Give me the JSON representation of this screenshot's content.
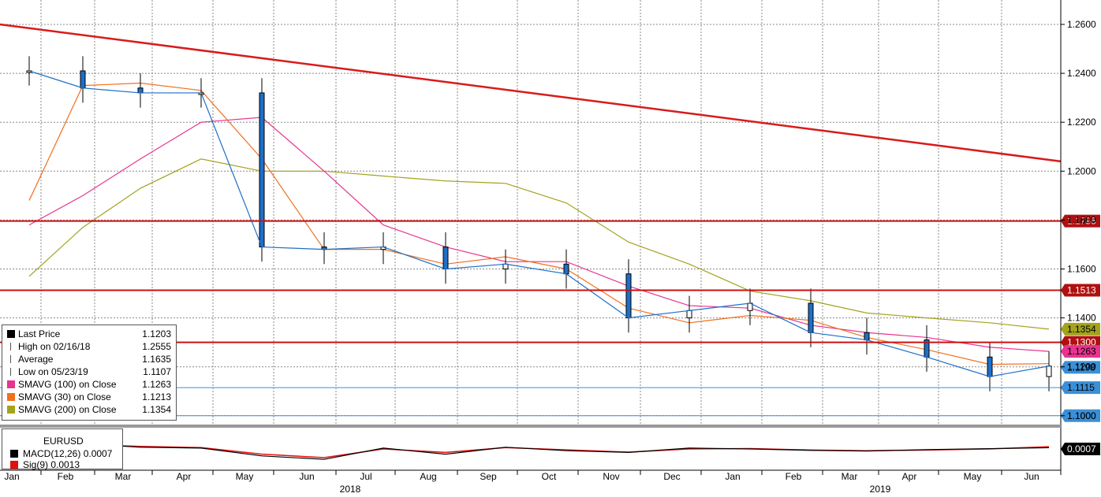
{
  "chart_data": {
    "type": "line",
    "ticker": "EURUSD",
    "y_ticks": [
      "1.2600",
      "1.2400",
      "1.2200",
      "1.2000",
      "1.1800",
      "1.1600",
      "1.1400",
      "1.1200",
      "1.1000"
    ],
    "ylim": [
      1.1,
      1.265
    ],
    "x_months": [
      "Jan",
      "Feb",
      "Mar",
      "Apr",
      "May",
      "Jun",
      "Jul",
      "Aug",
      "Sep",
      "Oct",
      "Nov",
      "Dec",
      "Jan",
      "Feb",
      "Mar",
      "Apr",
      "May",
      "Jun"
    ],
    "x_years": [
      "2018",
      "2019"
    ],
    "horizontal_levels": [
      {
        "value": 1.1796,
        "label": "1.1796",
        "color": "#cc1111"
      },
      {
        "value": 1.1513,
        "label": "1.1513",
        "color": "#cc1111"
      },
      {
        "value": 1.13,
        "label": "1.1300",
        "color": "#cc1111"
      },
      {
        "value": 1.1115,
        "label": "1.1115",
        "color": "#3a8fd6"
      },
      {
        "value": 1.1,
        "label": "1.1000",
        "color": "#3a8fd6"
      }
    ],
    "tags": [
      {
        "value": 1.1354,
        "label": "1.1354",
        "color": "#a3a31e"
      },
      {
        "value": 1.1263,
        "label": "1.1263",
        "color": "#e8338f"
      },
      {
        "value": 1.1198,
        "label": "1.1198",
        "color": "#3a8fd6"
      }
    ],
    "trendline": {
      "start": 1.2555,
      "end": 1.204
    },
    "price": {
      "x": [
        "Jan-18",
        "Feb-18",
        "Mar-18",
        "Apr-18",
        "May-18",
        "Jun-18",
        "Jul-18",
        "Aug-18",
        "Sep-18",
        "Oct-18",
        "Nov-18",
        "Dec-18",
        "Jan-19",
        "Feb-19",
        "Mar-19",
        "Apr-19",
        "May-19",
        "Jun-19"
      ],
      "close": [
        1.241,
        1.234,
        1.232,
        1.232,
        1.169,
        1.168,
        1.169,
        1.16,
        1.162,
        1.158,
        1.14,
        1.143,
        1.146,
        1.134,
        1.131,
        1.124,
        1.116,
        1.1203
      ]
    },
    "sma30": [
      1.188,
      1.235,
      1.236,
      1.233,
      1.205,
      1.168,
      1.168,
      1.162,
      1.165,
      1.16,
      1.144,
      1.138,
      1.141,
      1.139,
      1.132,
      1.127,
      1.121,
      1.1213
    ],
    "sma100": [
      1.178,
      1.19,
      1.205,
      1.22,
      1.222,
      1.2,
      1.178,
      1.169,
      1.163,
      1.163,
      1.153,
      1.145,
      1.144,
      1.137,
      1.134,
      1.132,
      1.128,
      1.1263
    ],
    "sma200": [
      1.157,
      1.177,
      1.193,
      1.205,
      1.2,
      1.2,
      1.198,
      1.196,
      1.195,
      1.187,
      1.171,
      1.162,
      1.151,
      1.147,
      1.142,
      1.14,
      1.138,
      1.1354
    ],
    "legend": [
      {
        "label": "Last Price",
        "value": "1.1203",
        "color": "#000000"
      },
      {
        "label": "High on 02/16/18",
        "value": "1.2555",
        "color": ""
      },
      {
        "label": "Average",
        "value": "1.1635",
        "color": ""
      },
      {
        "label": "Low on 05/23/19",
        "value": "1.1107",
        "color": ""
      },
      {
        "label": "SMAVG (100)  on Close",
        "value": "1.1263",
        "color": "#e8338f"
      },
      {
        "label": "SMAVG (30)  on Close",
        "value": "1.1213",
        "color": "#f07020"
      },
      {
        "label": "SMAVG (200)  on Close",
        "value": "1.1354",
        "color": "#a3a31e"
      }
    ],
    "macd_panel": {
      "title": "EURUSD",
      "macd_label": "MACD(12,26)",
      "macd_value": "0.0007",
      "sig_label": "Sig(9)",
      "sig_value": "0.0013",
      "tag": "0.0007"
    }
  }
}
